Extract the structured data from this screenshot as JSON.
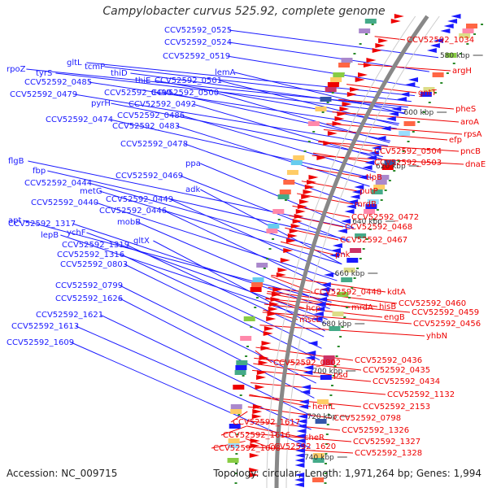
{
  "title": "Campylobacter curvus 525.92, complete genome",
  "accession": "Accession: NC_009715",
  "topology": "Topology: circular; Length: 1,971,264 bp; Genes: 1,994",
  "colors": {
    "left": "#1a1aff",
    "right": "#ee0000",
    "backbone": "#888888",
    "tick": "#444444"
  },
  "kbp_ticks": [
    "580 kbp",
    "600 kbp",
    "620 kbp",
    "640 kbp",
    "660 kbp",
    "680 kbp",
    "700 kbp",
    "720 kbp",
    "740 kbp"
  ],
  "left_labels": [
    "CCV52592_0525",
    "CCV52592_0524",
    "CCV52592_0519",
    "gltL",
    "tcmP",
    "thiD",
    "rpoZ",
    "tyrS",
    "lemA",
    "thiE",
    "CCV52592_0501",
    "CCV52592_0485",
    "CCV52592_0490",
    "CCV52592_0500",
    "CCV52592_0479",
    "pyrH",
    "CCV52592_0492",
    "CCV52592_0486",
    "CCV52592_0474",
    "CCV52592_0483",
    "CCV52592_0478",
    "ppa",
    "CCV52592_0469",
    "flgB",
    "fbp",
    "CCV52592_0444",
    "metG",
    "adk",
    "CCV52592_0449",
    "CCV52592_0440",
    "CCV52592_0446",
    "apt",
    "mobB",
    "CCV52592_1317",
    "ychF",
    "lepB",
    "gltX",
    "CCV52592_1319",
    "CCV52592_1316",
    "CCV52592_0803",
    "CCV52592_0799",
    "CCV52592_1626",
    "CCV52592_1621",
    "CCV52592_1613",
    "CCV52592_1609"
  ],
  "right_labels": [
    "CCV52592_1034",
    "argH",
    "gntT",
    "pheS",
    "aroA",
    "rpsA",
    "efp",
    "CCV52592_0504",
    "pncB",
    "CCV52592_0503",
    "dnaE",
    "tlpB",
    "putP",
    "mrdB",
    "CCV52592_0472",
    "CCV52592_0468",
    "CCV52592_0467",
    "pnk",
    "kdtA",
    "CCV52592_0448",
    "CCV52592_0460",
    "hisB",
    "mrdA",
    "CCV52592_0459",
    "engB",
    "hcp",
    "CCV52592_0456",
    "mscL",
    "yhbN",
    "CCV52592_0436",
    "CCV52592_0802",
    "CCV52592_0435",
    "psd",
    "CCV52592_0434",
    "CCV52592_1132",
    "hemL",
    "CCV52592_2153",
    "CCV52592_0798",
    "CCV52592_1617",
    "cheR",
    "CCV52592_1326",
    "CCV52592_1616",
    "CCV52592_1327",
    "CCV52592_1620",
    "CCV52592_1608",
    "CCV52592_1328"
  ]
}
